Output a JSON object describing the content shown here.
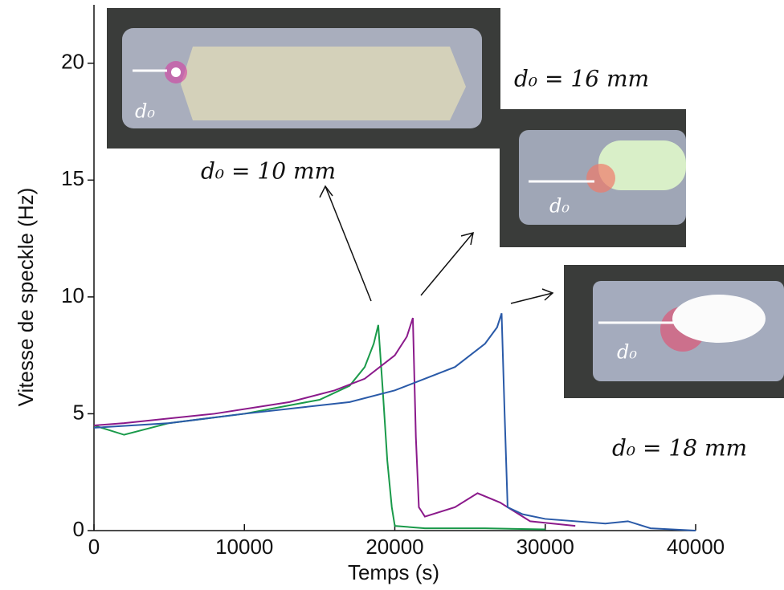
{
  "chart_data": {
    "type": "line",
    "x_label": "Temps (s)",
    "y_label": "Vitesse de speckle (Hz)",
    "xlim": [
      0,
      40000
    ],
    "ylim": [
      0,
      22.5
    ],
    "xticks": [
      0,
      10000,
      20000,
      30000,
      40000
    ],
    "yticks": [
      0,
      5,
      10,
      15,
      20
    ],
    "series": [
      {
        "name": "d₀ = 10 mm",
        "color": "#1a9a4a",
        "x": [
          0,
          2000,
          5000,
          10000,
          15000,
          17000,
          18000,
          18600,
          18900,
          19200,
          19500,
          19800,
          20000,
          22000,
          26000,
          30000
        ],
        "values": [
          4.5,
          4.1,
          4.6,
          5.0,
          5.6,
          6.2,
          7.0,
          8.0,
          8.8,
          6.0,
          3.0,
          1.0,
          0.2,
          0.1,
          0.1,
          0.05
        ]
      },
      {
        "name": "d₀ = 16 mm",
        "color": "#8b1a8b",
        "x": [
          0,
          2000,
          8000,
          13000,
          16000,
          18000,
          20000,
          20800,
          21200,
          21400,
          21600,
          22000,
          24000,
          25500,
          27000,
          29000,
          32000
        ],
        "values": [
          4.5,
          4.6,
          5.0,
          5.5,
          6.0,
          6.5,
          7.5,
          8.3,
          9.1,
          4.0,
          1.0,
          0.6,
          1.0,
          1.6,
          1.2,
          0.4,
          0.2
        ]
      },
      {
        "name": "d₀ = 18 mm",
        "color": "#2a5aa8",
        "x": [
          0,
          5000,
          10000,
          17000,
          20000,
          24000,
          26000,
          26800,
          27100,
          27300,
          27500,
          28500,
          30000,
          34000,
          35500,
          37000,
          40000
        ],
        "values": [
          4.4,
          4.6,
          5.0,
          5.5,
          6.0,
          7.0,
          8.0,
          8.7,
          9.3,
          5.0,
          1.0,
          0.7,
          0.5,
          0.3,
          0.4,
          0.1,
          0.0
        ]
      }
    ],
    "annotations": [
      "d₀",
      "d₀",
      "d₀"
    ]
  }
}
